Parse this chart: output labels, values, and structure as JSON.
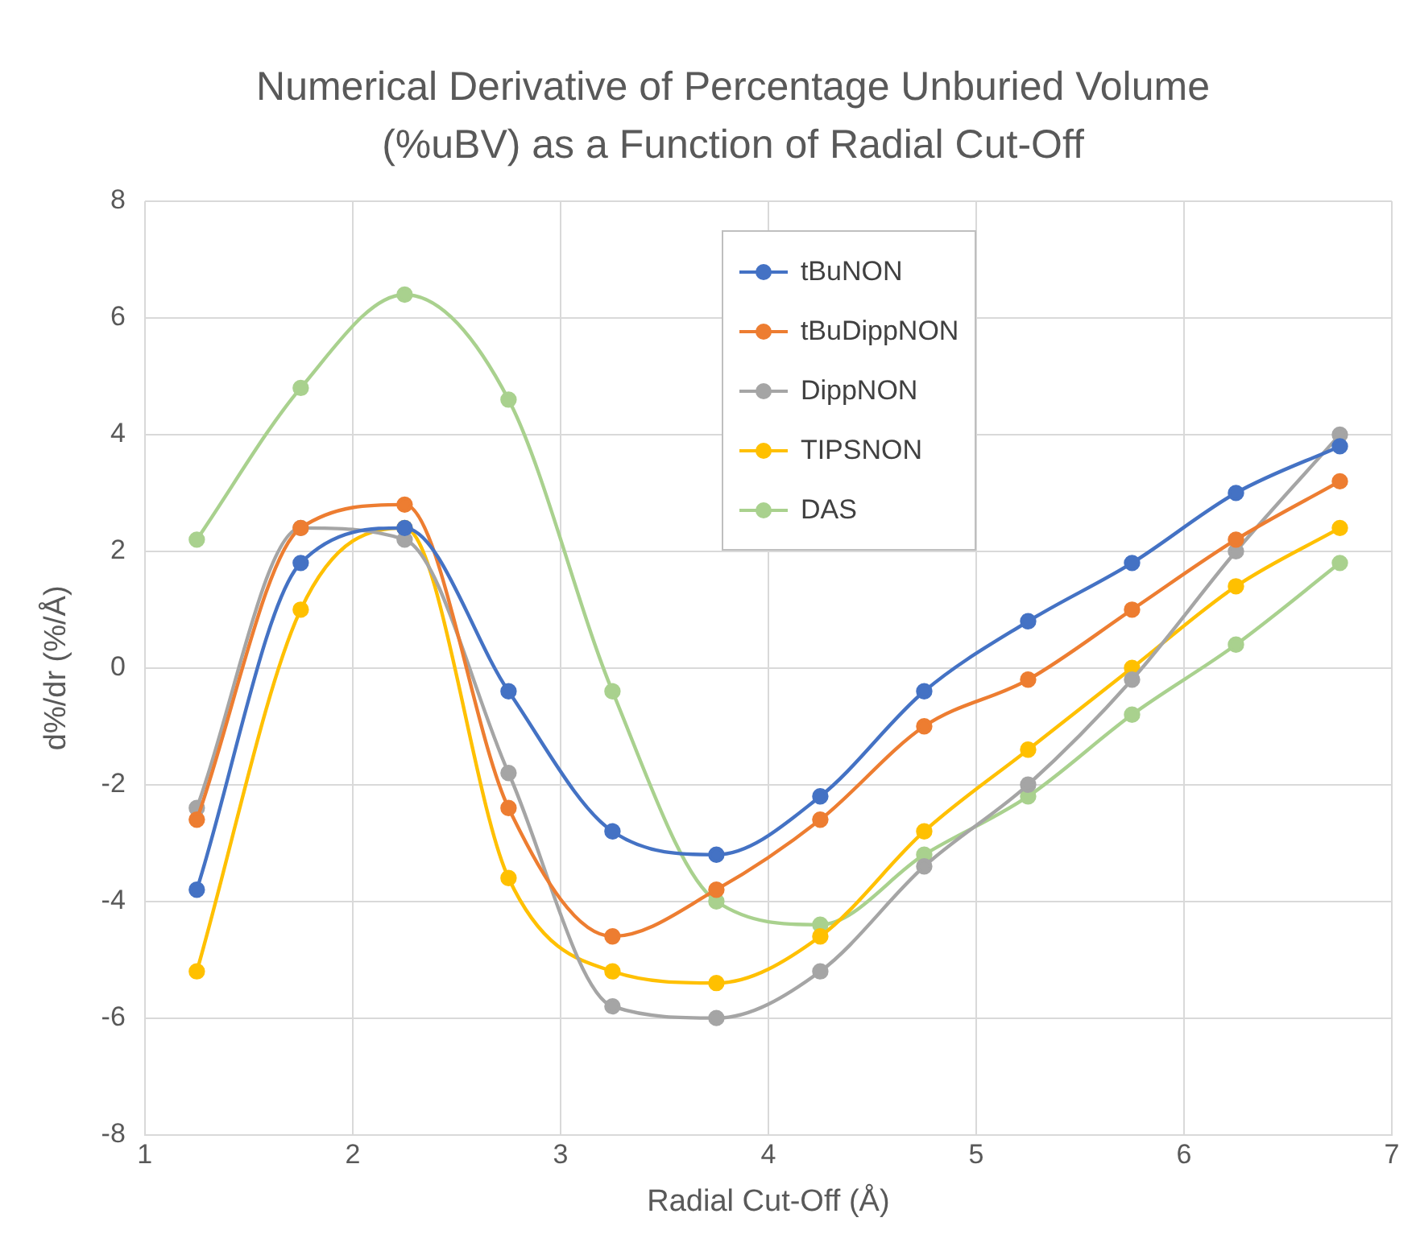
{
  "chart_data": {
    "type": "line",
    "title": "Numerical Derivative of Percentage Unburied Volume (%uBV) as a Function of Radial Cut-Off",
    "xlabel": "Radial Cut-Off (Å)",
    "ylabel": "d%/dr (%/Å)",
    "x": [
      1.25,
      1.75,
      2.25,
      2.75,
      3.25,
      3.75,
      4.25,
      4.75,
      5.25,
      5.75,
      6.25,
      6.75
    ],
    "series": [
      {
        "name": "tBuNON",
        "color": "#4472c4",
        "values": [
          -3.8,
          1.8,
          2.4,
          -0.4,
          -2.8,
          -3.2,
          -2.2,
          -0.4,
          0.8,
          1.8,
          3.0,
          3.8
        ]
      },
      {
        "name": "tBuDippNON",
        "color": "#ed7d31",
        "values": [
          -2.6,
          2.4,
          2.8,
          -2.4,
          -4.6,
          -3.8,
          -2.6,
          -1.0,
          -0.2,
          1.0,
          2.2,
          3.2
        ]
      },
      {
        "name": "DippNON",
        "color": "#a5a5a5",
        "values": [
          -2.4,
          2.4,
          2.2,
          -1.8,
          -5.8,
          -6.0,
          -5.2,
          -3.4,
          -2.0,
          -0.2,
          2.0,
          4.0
        ]
      },
      {
        "name": "TIPSNON",
        "color": "#ffc000",
        "values": [
          -5.2,
          1.0,
          2.4,
          -3.6,
          -5.2,
          -5.4,
          -4.6,
          -2.8,
          -1.4,
          0.0,
          1.4,
          2.4
        ]
      },
      {
        "name": "DAS",
        "color": "#a9d18e",
        "values": [
          2.2,
          4.8,
          6.4,
          4.6,
          -0.4,
          -4.0,
          -4.4,
          -3.2,
          -2.2,
          -0.8,
          0.4,
          1.8
        ]
      }
    ],
    "xlim": [
      1,
      7
    ],
    "xticks": [
      1,
      2,
      3,
      4,
      5,
      6,
      7
    ],
    "ylim": [
      -8,
      8
    ],
    "yticks": [
      -8,
      -6,
      -4,
      -2,
      0,
      2,
      4,
      6,
      8
    ],
    "grid": true,
    "legend": "top",
    "marker": "circle",
    "line_style": "solid"
  }
}
